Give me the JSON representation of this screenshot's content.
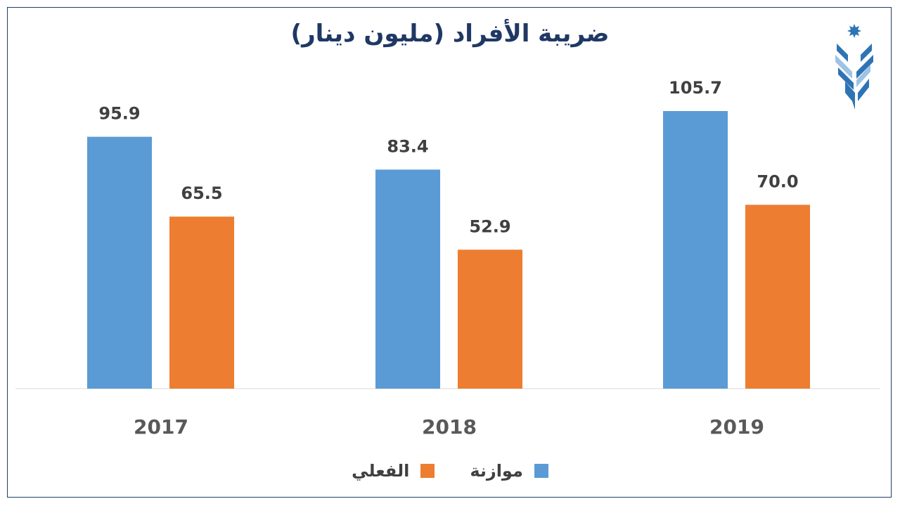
{
  "chart_data": {
    "type": "bar",
    "title": "ضريبة الأفراد (مليون دينار)",
    "categories": [
      "2017",
      "2018",
      "2019"
    ],
    "series": [
      {
        "name": "موازنة",
        "color": "#5b9bd5",
        "values": [
          95.9,
          83.4,
          105.7
        ],
        "labels": [
          "95.9",
          "83.4",
          "105.7"
        ]
      },
      {
        "name": "الفعلي",
        "color": "#ed7d31",
        "values": [
          65.5,
          52.9,
          70.0
        ],
        "labels": [
          "65.5",
          "52.9",
          "70.0"
        ]
      }
    ],
    "ylim": [
      0,
      105.7
    ],
    "grid": false,
    "legend_position": "bottom"
  },
  "logo": {
    "icon": "jordan-star-logo-icon"
  }
}
